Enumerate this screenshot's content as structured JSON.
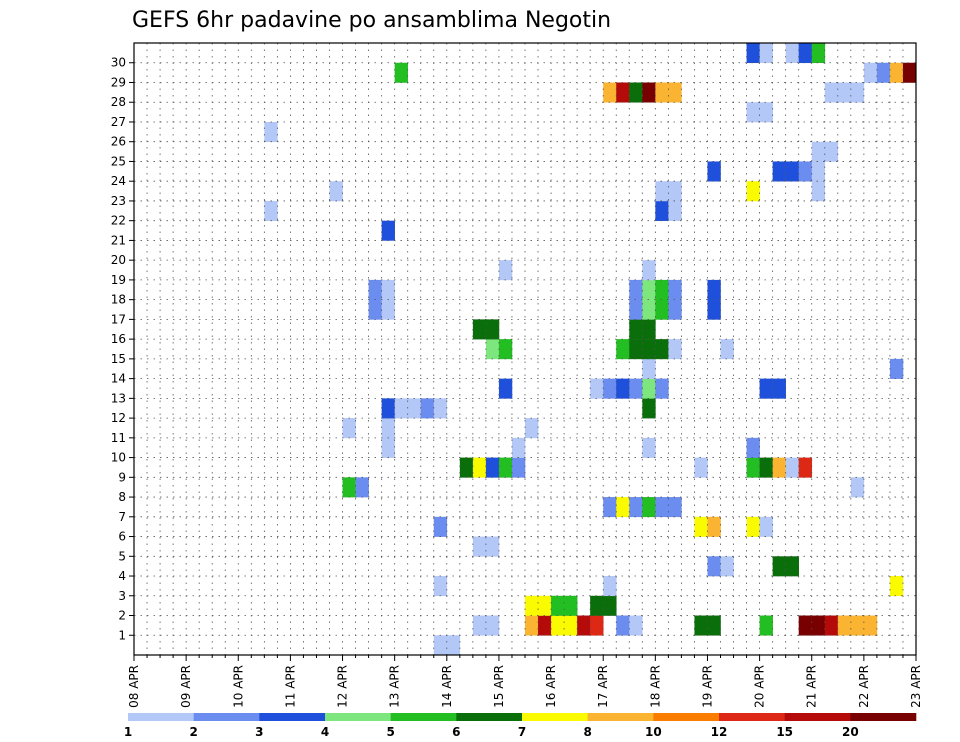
{
  "chart_data": {
    "type": "heatmap",
    "title": "GEFS 6hr padavine po ansamblima Negotin",
    "x_tick_labels": [
      "08 APR",
      "09 APR",
      "10 APR",
      "11 APR",
      "12 APR",
      "13 APR",
      "14 APR",
      "15 APR",
      "16 APR",
      "17 APR",
      "18 APR",
      "19 APR",
      "20 APR",
      "21 APR",
      "22 APR",
      "23 APR"
    ],
    "y_tick_labels": [
      "1",
      "2",
      "3",
      "4",
      "5",
      "6",
      "7",
      "8",
      "9",
      "10",
      "11",
      "12",
      "13",
      "14",
      "15",
      "16",
      "17",
      "18",
      "19",
      "20",
      "21",
      "22",
      "23",
      "24",
      "25",
      "26",
      "27",
      "28",
      "29",
      "30"
    ],
    "x_range": [
      0,
      60
    ],
    "y_range": [
      0,
      30
    ],
    "grid": true,
    "colorbar": {
      "labels": [
        "1",
        "2",
        "3",
        "4",
        "5",
        "6",
        "7",
        "8",
        "10",
        "12",
        "15",
        "20"
      ],
      "colors": [
        "#b4c8f8",
        "#6b8df0",
        "#1e50dc",
        "#7ee67e",
        "#22be22",
        "#0a6e0a",
        "#fafa00",
        "#fab432",
        "#fa7d00",
        "#dc2814",
        "#b40a0a",
        "#780000"
      ]
    },
    "cells": [
      [
        20,
        0,
        1
      ],
      [
        29,
        0,
        1
      ],
      [
        30,
        0,
        1
      ],
      [
        43,
        0,
        6
      ],
      [
        44,
        0,
        6
      ],
      [
        45,
        0,
        6
      ],
      [
        36,
        1,
        1
      ],
      [
        37,
        1,
        1
      ],
      [
        38,
        1,
        6
      ],
      [
        39,
        1,
        6
      ],
      [
        40,
        1,
        6
      ],
      [
        41,
        1,
        6
      ],
      [
        44,
        1,
        6
      ],
      [
        45,
        1,
        6
      ],
      [
        46,
        1,
        6
      ],
      [
        47,
        1,
        6
      ],
      [
        48,
        1,
        6
      ],
      [
        49,
        1,
        6
      ],
      [
        30,
        2,
        2
      ],
      [
        30,
        3,
        1
      ],
      [
        36,
        3,
        1
      ],
      [
        3,
        1,
        4
      ],
      [
        4,
        1,
        5
      ],
      [
        5,
        1,
        3
      ],
      [
        6,
        1,
        3
      ],
      [
        9,
        1,
        3
      ],
      [
        9,
        0,
        1
      ],
      [
        10,
        1,
        1
      ],
      [
        11,
        1,
        8
      ],
      [
        12,
        2,
        1
      ],
      [
        11,
        3,
        1
      ],
      [
        0,
        3,
        1
      ],
      [
        13,
        5,
        1
      ],
      [
        14,
        5,
        1
      ],
      [
        14,
        4,
        1
      ],
      [
        14,
        3,
        1
      ],
      [
        14,
        2,
        1
      ],
      [
        14,
        1,
        1
      ],
      [
        15,
        5,
        1
      ],
      [
        16,
        5,
        3
      ],
      [
        17,
        5,
        2
      ],
      [
        18,
        5,
        1
      ],
      [
        19,
        5,
        1
      ],
      [
        19,
        4,
        1
      ],
      [
        20,
        4,
        1
      ],
      [
        27,
        5,
        1
      ],
      [
        28,
        5,
        1
      ],
      [
        29,
        5,
        1
      ],
      [
        30,
        5,
        1
      ]
    ],
    "cell_encoding": "[x_step_index, y_member_index, color_class_index]"
  }
}
